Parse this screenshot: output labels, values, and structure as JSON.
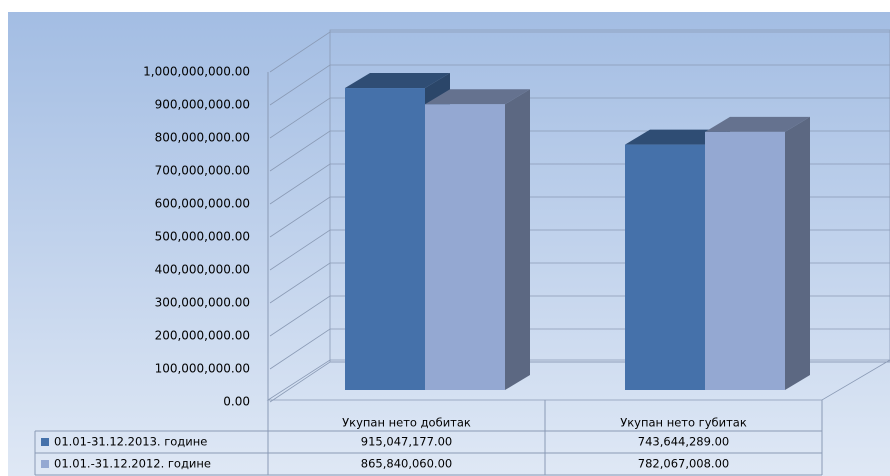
{
  "chart_data": {
    "type": "bar3d",
    "categories": [
      "Укупан нето добитак",
      "Укупан нето губитак"
    ],
    "series": [
      {
        "name": "01.01-31.12.2013. године",
        "color": "#4571aa",
        "values": [
          915047177,
          743644289
        ],
        "value_labels": [
          "915,047,177.00",
          "743,644,289.00"
        ]
      },
      {
        "name": "01.01.-31.12.2012. године",
        "color": "#94a8d2",
        "values": [
          865840060,
          782067008
        ],
        "value_labels": [
          "865,840,060.00",
          "782,067,008.00"
        ]
      }
    ],
    "ylim": [
      0,
      1000000000
    ],
    "yticks": [
      {
        "value": 0,
        "label": "0.00"
      },
      {
        "value": 100000000,
        "label": "100,000,000.00"
      },
      {
        "value": 200000000,
        "label": "200,000,000.00"
      },
      {
        "value": 300000000,
        "label": "300,000,000.00"
      },
      {
        "value": 400000000,
        "label": "400,000,000.00"
      },
      {
        "value": 500000000,
        "label": "500,000,000.00"
      },
      {
        "value": 600000000,
        "label": "600,000,000.00"
      },
      {
        "value": 700000000,
        "label": "700,000,000.00"
      },
      {
        "value": 800000000,
        "label": "800,000,000.00"
      },
      {
        "value": 900000000,
        "label": "900,000,000.00"
      },
      {
        "value": 1000000000,
        "label": "1,000,000,000.00"
      }
    ],
    "grid": true,
    "legend": "table"
  }
}
